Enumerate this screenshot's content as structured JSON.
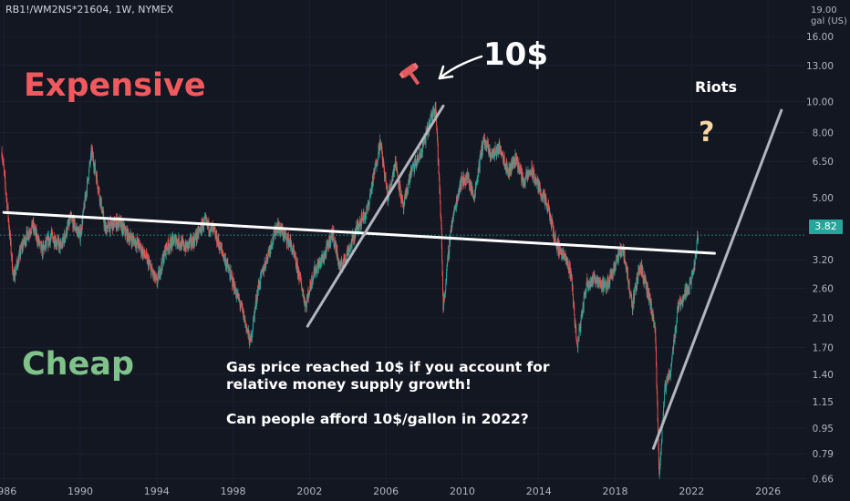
{
  "header": {
    "ticker": "RB1!/WM2NS*21604, 1W, NYMEX"
  },
  "price_axis": {
    "unit_line1": "19.00",
    "unit_line2": "gal (US)",
    "current_price": "3.82"
  },
  "labels": {
    "expensive": "Expensive",
    "cheap": "Cheap",
    "ten_dollars": "10$",
    "riots": "Riots",
    "question": "?",
    "note_line1": "Gas price reached 10$ if you account for",
    "note_line2": "relative money supply growth!",
    "note_line3": "Can people afford 10$/gallon in 2022?"
  },
  "colors": {
    "background": "#131722",
    "up_candle": "#26a69a",
    "down_candle": "#ef5350",
    "trendline": "#ffffff",
    "channel_line": "#b2b5be",
    "current_price": "#26a69a",
    "expensive": "#f05a5f",
    "cheap": "#7fc28a"
  },
  "icons": {
    "gavel": "gavel-icon",
    "arrow": "arrow-icon"
  },
  "chart_data": {
    "type": "candlestick",
    "scale": "log",
    "x_ticks": [
      "1986",
      "1990",
      "1994",
      "1998",
      "2002",
      "2006",
      "2010",
      "2014",
      "2018",
      "2022",
      "2026"
    ],
    "y_ticks": [
      "16.00",
      "13.00",
      "10.00",
      "8.00",
      "6.50",
      "5.00",
      "4.00",
      "3.20",
      "2.60",
      "2.10",
      "1.70",
      "1.40",
      "1.15",
      "0.95",
      "0.79",
      "0.66"
    ],
    "ylim": [
      0.64,
      19
    ],
    "xlim": [
      1985.8,
      2028
    ],
    "current_price": 3.82,
    "series": [
      {
        "name": "price",
        "points": [
          [
            1985.9,
            7.0
          ],
          [
            1986.2,
            4.6
          ],
          [
            1986.5,
            2.8
          ],
          [
            1987.0,
            3.6
          ],
          [
            1987.5,
            4.1
          ],
          [
            1988.0,
            3.4
          ],
          [
            1988.5,
            3.8
          ],
          [
            1989.0,
            3.5
          ],
          [
            1989.5,
            4.3
          ],
          [
            1990.0,
            3.8
          ],
          [
            1990.6,
            7.0
          ],
          [
            1990.9,
            5.6
          ],
          [
            1991.3,
            4.0
          ],
          [
            1992.0,
            4.2
          ],
          [
            1992.5,
            3.8
          ],
          [
            1993.0,
            3.6
          ],
          [
            1993.5,
            3.2
          ],
          [
            1994.0,
            2.7
          ],
          [
            1994.5,
            3.5
          ],
          [
            1995.0,
            3.7
          ],
          [
            1995.5,
            3.5
          ],
          [
            1996.0,
            3.7
          ],
          [
            1996.5,
            4.2
          ],
          [
            1997.0,
            3.9
          ],
          [
            1997.5,
            3.3
          ],
          [
            1998.0,
            2.7
          ],
          [
            1998.5,
            2.2
          ],
          [
            1998.9,
            1.75
          ],
          [
            1999.3,
            2.6
          ],
          [
            1999.8,
            3.3
          ],
          [
            2000.3,
            4.1
          ],
          [
            2000.7,
            3.8
          ],
          [
            2001.0,
            3.6
          ],
          [
            2001.5,
            2.8
          ],
          [
            2001.8,
            2.3
          ],
          [
            2002.2,
            2.9
          ],
          [
            2002.8,
            3.3
          ],
          [
            2003.2,
            3.9
          ],
          [
            2003.6,
            3.0
          ],
          [
            2004.2,
            3.6
          ],
          [
            2004.6,
            4.2
          ],
          [
            2005.0,
            4.5
          ],
          [
            2005.7,
            7.5
          ],
          [
            2006.1,
            5.0
          ],
          [
            2006.5,
            6.5
          ],
          [
            2006.9,
            4.6
          ],
          [
            2007.3,
            6.0
          ],
          [
            2007.8,
            6.8
          ],
          [
            2008.4,
            9.0
          ],
          [
            2008.6,
            9.9
          ],
          [
            2008.9,
            4.0
          ],
          [
            2009.0,
            2.25
          ],
          [
            2009.4,
            4.0
          ],
          [
            2009.9,
            5.6
          ],
          [
            2010.3,
            5.8
          ],
          [
            2010.6,
            5.0
          ],
          [
            2011.1,
            7.6
          ],
          [
            2011.5,
            6.8
          ],
          [
            2012.0,
            7.2
          ],
          [
            2012.4,
            6.0
          ],
          [
            2012.8,
            6.7
          ],
          [
            2013.2,
            5.6
          ],
          [
            2013.6,
            6.1
          ],
          [
            2014.0,
            5.4
          ],
          [
            2014.5,
            4.6
          ],
          [
            2014.9,
            3.6
          ],
          [
            2015.3,
            3.3
          ],
          [
            2015.7,
            2.9
          ],
          [
            2016.0,
            1.7
          ],
          [
            2016.5,
            2.7
          ],
          [
            2017.0,
            2.8
          ],
          [
            2017.5,
            2.6
          ],
          [
            2018.0,
            3.1
          ],
          [
            2018.4,
            3.5
          ],
          [
            2018.9,
            2.3
          ],
          [
            2019.3,
            3.1
          ],
          [
            2019.8,
            2.4
          ],
          [
            2020.1,
            1.9
          ],
          [
            2020.3,
            0.68
          ],
          [
            2020.6,
            1.25
          ],
          [
            2020.9,
            1.45
          ],
          [
            2021.3,
            2.3
          ],
          [
            2021.8,
            2.6
          ],
          [
            2022.1,
            2.9
          ],
          [
            2022.35,
            3.9
          ]
        ]
      }
    ],
    "trendlines": [
      {
        "name": "long-term",
        "from": [
          1986.0,
          4.5
        ],
        "to": [
          2023.2,
          3.35
        ]
      },
      {
        "name": "bubble",
        "from": [
          2001.9,
          1.98
        ],
        "to": [
          2009.0,
          9.7
        ]
      },
      {
        "name": "riots-channel",
        "from": [
          2020.0,
          0.82
        ],
        "to": [
          2026.7,
          9.4
        ]
      }
    ]
  }
}
